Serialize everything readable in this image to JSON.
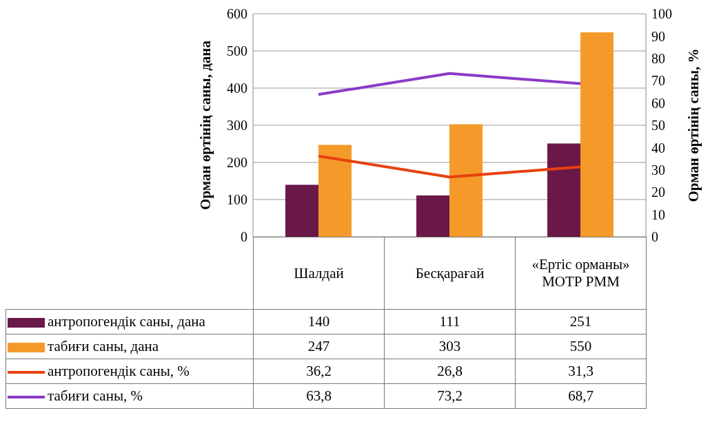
{
  "chart_data": {
    "type": "bar",
    "categories": [
      "Шалдай",
      "Бесқарағай",
      "«Ертіс орманы» МОТР РММ"
    ],
    "series": [
      {
        "name": "антропогендік саны, дана",
        "color": "#6a1848",
        "values": [
          140,
          111,
          251
        ],
        "value_labels": [
          "140",
          "111",
          "251"
        ]
      },
      {
        "name": "табиғи саны, дана",
        "color": "#f59a2a",
        "values": [
          247,
          303,
          550
        ],
        "value_labels": [
          "247",
          "303",
          "550"
        ]
      },
      {
        "name": "антропогендік саны, %",
        "type": "line",
        "axis": "y2",
        "color": "#e8400e",
        "values": [
          36.2,
          26.8,
          31.3
        ],
        "value_labels": [
          "36,2",
          "26,8",
          "31,3"
        ]
      },
      {
        "name": "табиғи саны, %",
        "type": "line",
        "axis": "y2",
        "color": "#8a3ac8",
        "values": [
          63.8,
          73.2,
          68.7
        ],
        "value_labels": [
          "63,8",
          "73,2",
          "68,7"
        ]
      }
    ],
    "ylabel": "Орман өртінің саны, дана",
    "y2label": "Орман өртінің саны, %",
    "ylim": [
      0,
      600
    ],
    "yticks": [
      0,
      100,
      200,
      300,
      400,
      500,
      600
    ],
    "y2lim": [
      0,
      100
    ],
    "y2ticks": [
      0,
      10,
      20,
      30,
      40,
      50,
      60,
      70,
      80,
      90,
      100
    ],
    "grid": "y",
    "legend": "bottom",
    "marker": "none",
    "line_style": "solid"
  }
}
